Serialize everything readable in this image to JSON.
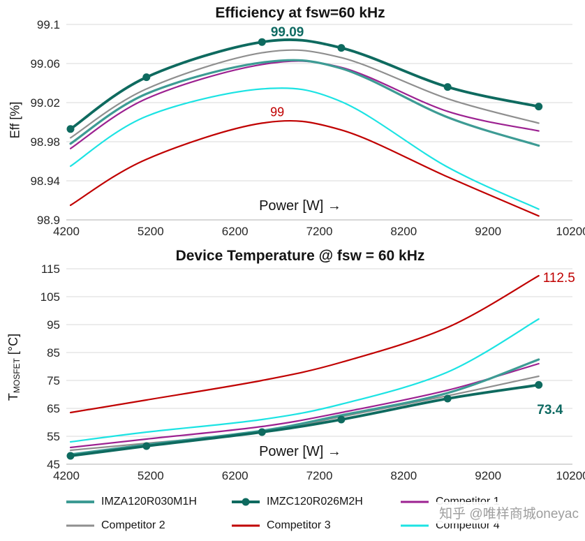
{
  "chart_data": [
    {
      "type": "line",
      "title": "Efficiency at fsw=60 kHz",
      "xlabel": "Power [W] →",
      "ylabel": "Eff [%]",
      "xlim": [
        4200,
        10200
      ],
      "ylim": [
        98.9,
        99.1
      ],
      "x_ticks": [
        4200,
        5200,
        6200,
        7200,
        8200,
        9200,
        10200
      ],
      "y_ticks": [
        98.9,
        98.94,
        98.98,
        99.02,
        99.06,
        99.1
      ],
      "y_tick_labels": [
        "98.9",
        "98.94",
        "98.98",
        "99.02",
        "99.06",
        "99.1"
      ],
      "grid": "horizontal",
      "legend_position": "bottom",
      "x": [
        4250,
        5150,
        6520,
        7460,
        8720,
        9800
      ],
      "series": [
        {
          "name": "Competitor 3",
          "color": "#c00000",
          "width": 2.2,
          "marker": false,
          "values": [
            98.915,
            98.962,
            98.999,
            98.992,
            98.944,
            98.904
          ]
        },
        {
          "name": "Competitor 4",
          "color": "#1ce3e3",
          "width": 2.2,
          "marker": false,
          "values": [
            98.955,
            99.006,
            99.034,
            99.021,
            98.954,
            98.911
          ]
        },
        {
          "name": "Competitor 1",
          "color": "#9c2191",
          "width": 2.2,
          "marker": false,
          "values": [
            98.973,
            99.024,
            99.059,
            99.056,
            99.011,
            98.991
          ]
        },
        {
          "name": "Competitor 2",
          "color": "#8f8f8f",
          "width": 2.2,
          "marker": false,
          "values": [
            98.984,
            99.034,
            99.071,
            99.066,
            99.024,
            98.999
          ]
        },
        {
          "name": "IMZA120R030M1H",
          "color": "#3d9b94",
          "width": 3.2,
          "marker": false,
          "values": [
            98.978,
            99.029,
            99.061,
            99.055,
            99.005,
            98.976
          ]
        },
        {
          "name": "IMZC120R026M2H",
          "color": "#0e6a5f",
          "width": 3.8,
          "marker": true,
          "values": [
            98.993,
            99.046,
            99.082,
            99.076,
            99.036,
            99.016
          ]
        }
      ],
      "annotations": [
        {
          "text": "99.09",
          "x": 6820,
          "y": 99.088,
          "color": "#0f6a62",
          "bold": true,
          "size": 19,
          "anchor": "middle"
        },
        {
          "text": "99",
          "x": 6700,
          "y": 99.006,
          "color": "#c00000",
          "bold": false,
          "size": 18,
          "anchor": "middle"
        }
      ]
    },
    {
      "type": "line",
      "title": "Device Temperature @ fsw = 60 kHz",
      "xlabel": "Power [W] →",
      "ylabel": {
        "pre": "T",
        "sub": "MOSFET",
        "post": " [°C]"
      },
      "xlim": [
        4200,
        10200
      ],
      "ylim": [
        45,
        115
      ],
      "x_ticks": [
        4200,
        5200,
        6200,
        7200,
        8200,
        9200,
        10200
      ],
      "y_ticks": [
        45,
        55,
        65,
        75,
        85,
        95,
        105,
        115
      ],
      "y_tick_labels": [
        "45",
        "55",
        "65",
        "75",
        "85",
        "95",
        "105",
        "115"
      ],
      "grid": "horizontal",
      "legend_position": "bottom",
      "x": [
        4250,
        5150,
        6520,
        7460,
        8720,
        9800
      ],
      "series": [
        {
          "name": "Competitor 3",
          "color": "#c00000",
          "width": 2.2,
          "marker": false,
          "values": [
            63.5,
            68,
            75,
            81.5,
            94,
            112.5
          ]
        },
        {
          "name": "Competitor 4",
          "color": "#1ce3e3",
          "width": 2.2,
          "marker": false,
          "values": [
            53,
            56.5,
            61,
            66.5,
            78,
            97
          ]
        },
        {
          "name": "Competitor 1",
          "color": "#9c2191",
          "width": 2.2,
          "marker": false,
          "values": [
            51,
            54,
            58.5,
            63.5,
            71.5,
            81
          ]
        },
        {
          "name": "Competitor 2",
          "color": "#8f8f8f",
          "width": 2.2,
          "marker": false,
          "values": [
            50,
            52.5,
            56.5,
            62,
            69.5,
            76.5
          ]
        },
        {
          "name": "IMZA120R030M1H",
          "color": "#3d9b94",
          "width": 3.2,
          "marker": false,
          "values": [
            48.5,
            52,
            57,
            62.5,
            70.5,
            82.5
          ]
        },
        {
          "name": "IMZC120R026M2H",
          "color": "#0e6a5f",
          "width": 3.8,
          "marker": true,
          "values": [
            48,
            51.5,
            56.5,
            61,
            68.5,
            73.4
          ]
        }
      ],
      "annotations": [
        {
          "text": "112.5",
          "x": 9850,
          "y": 110.3,
          "color": "#c00000",
          "bold": false,
          "size": 19,
          "anchor": "start"
        },
        {
          "text": "73.4",
          "x": 9780,
          "y": 63,
          "color": "#0f6a62",
          "bold": true,
          "size": 19,
          "anchor": "start"
        }
      ]
    }
  ],
  "legend": {
    "items": [
      {
        "label": "IMZA120R030M1H",
        "color": "#3d9b94",
        "marker": false,
        "width": 4
      },
      {
        "label": "IMZC120R026M2H",
        "color": "#0e6a5f",
        "marker": true,
        "width": 4
      },
      {
        "label": "Competitor 1",
        "color": "#9c2191",
        "marker": false,
        "width": 3
      },
      {
        "label": "Competitor 2",
        "color": "#8f8f8f",
        "marker": false,
        "width": 3
      },
      {
        "label": "Competitor 3",
        "color": "#c00000",
        "marker": false,
        "width": 3
      },
      {
        "label": "Competitor 4",
        "color": "#1ce3e3",
        "marker": false,
        "width": 3
      }
    ]
  },
  "watermark": "知乎 @唯样商城oneyac"
}
